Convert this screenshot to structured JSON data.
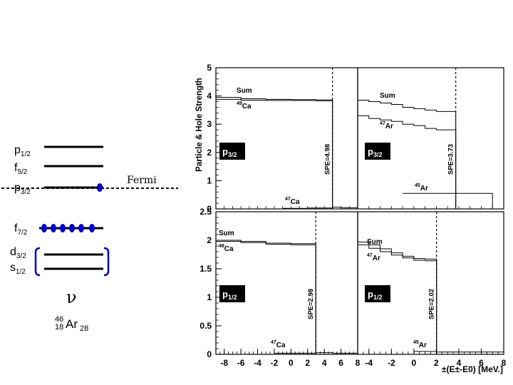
{
  "scheme": {
    "levels": [
      {
        "orbital": "p",
        "sub": "1/2"
      },
      {
        "orbital": "f",
        "sub": "5/2"
      },
      {
        "orbital": "p",
        "sub": "3/2"
      },
      {
        "orbital": "f",
        "sub": "7/2"
      },
      {
        "orbital": "d",
        "sub": "3/2"
      },
      {
        "orbital": "s",
        "sub": "1/2"
      }
    ],
    "fermi_label": "Fermi",
    "nu_label": "ν",
    "nucleus": {
      "mass": "46",
      "z": "18",
      "symbol": "Ar",
      "n": "28"
    },
    "colors": {
      "particle": "#0000cc",
      "line": "#000000"
    }
  },
  "chart_data": [
    {
      "panel": "top-left",
      "type": "line",
      "orbital_label": "p",
      "orbital_sub": "3/2",
      "xlim": [
        -9,
        8
      ],
      "ylim": [
        0,
        5
      ],
      "y_ticks": [
        "0",
        "1",
        "2",
        "3",
        "4",
        "5"
      ],
      "ylabel": "Particle & Hole Strength",
      "spe_label": "SPE=4.98",
      "spe_value": 4.98,
      "series": [
        {
          "name": "Sum",
          "label_text": "Sum",
          "x": [
            -9,
            -6,
            -3,
            0,
            3,
            4.98
          ],
          "y": [
            3.95,
            3.9,
            3.88,
            3.87,
            3.86,
            3.86
          ]
        },
        {
          "name": "49Ca",
          "label_sup": "49",
          "label_text": "Ca",
          "x": [
            -9,
            -6,
            -3,
            0,
            3,
            4.98
          ],
          "y": [
            3.88,
            3.85,
            3.84,
            3.84,
            3.83,
            3.83
          ]
        },
        {
          "name": "47Ca",
          "label_sup": "47",
          "label_text": "Ca",
          "x": [
            -1,
            2,
            4.98,
            6,
            8
          ],
          "y": [
            0.02,
            0.03,
            0.06,
            0.04,
            0.02
          ]
        }
      ]
    },
    {
      "panel": "top-right",
      "type": "line",
      "orbital_label": "p",
      "orbital_sub": "3/2",
      "xlim": [
        -5,
        8
      ],
      "ylim": [
        0,
        5
      ],
      "spe_label": "SPE=3.73",
      "spe_value": 3.73,
      "series": [
        {
          "name": "Sum",
          "label_text": "Sum",
          "x": [
            -5,
            -4,
            -3,
            -2,
            -1,
            0,
            1,
            2,
            3.73
          ],
          "y": [
            3.85,
            3.8,
            3.75,
            3.7,
            3.6,
            3.55,
            3.5,
            3.45,
            3.45
          ]
        },
        {
          "name": "47Ar",
          "label_sup": "47",
          "label_text": "Ar",
          "x": [
            -5,
            -4,
            -3,
            -2,
            -1,
            0,
            1,
            2,
            3.73
          ],
          "y": [
            3.3,
            3.2,
            3.15,
            3.1,
            3.0,
            2.95,
            2.85,
            2.8,
            2.8
          ]
        },
        {
          "name": "45Ar",
          "label_sup": "45",
          "label_text": "Ar",
          "x": [
            -1,
            3.73,
            5,
            7
          ],
          "y": [
            0.55,
            0.55,
            0.55,
            0.55
          ]
        }
      ]
    },
    {
      "panel": "bottom-left",
      "type": "line",
      "orbital_label": "p",
      "orbital_sub": "1/2",
      "xlim": [
        -9,
        8
      ],
      "ylim": [
        0,
        2.5
      ],
      "x_ticks": [
        "-8",
        "-6",
        "-4",
        "-2",
        "0",
        "2",
        "4",
        "6",
        "8"
      ],
      "y_ticks": [
        "0",
        "0.5",
        "1",
        "1.5",
        "2",
        "2.5"
      ],
      "spe_label": "SPE=2.98",
      "spe_value": 2.98,
      "series": [
        {
          "name": "Sum",
          "label_text": "Sum",
          "x": [
            -9,
            -6,
            -3,
            0,
            2.98
          ],
          "y": [
            2.0,
            1.98,
            1.95,
            1.94,
            1.94
          ]
        },
        {
          "name": "49Ca",
          "label_sup": "49",
          "label_text": "Ca",
          "x": [
            -9,
            -6,
            -3,
            0,
            2.98
          ],
          "y": [
            1.98,
            1.96,
            1.93,
            1.92,
            1.92
          ]
        },
        {
          "name": "47Ca",
          "label_sup": "47",
          "label_text": "Ca",
          "x": [
            -2,
            2.98,
            5,
            8
          ],
          "y": [
            0.02,
            0.03,
            0.02,
            0.02
          ]
        }
      ]
    },
    {
      "panel": "bottom-right",
      "type": "line",
      "orbital_label": "p",
      "orbital_sub": "1/2",
      "xlim": [
        -5,
        8
      ],
      "ylim": [
        0,
        2.5
      ],
      "x_ticks": [
        "-4",
        "-2",
        "0",
        "2",
        "4",
        "6",
        "8"
      ],
      "xlabel": "±(E±-E0) [MeV.]",
      "spe_label": "SPE=2.02",
      "spe_value": 2.02,
      "series": [
        {
          "name": "Sum",
          "label_text": "Sum",
          "x": [
            -5,
            -4,
            -3,
            -2,
            -1,
            0,
            1,
            2.02
          ],
          "y": [
            1.97,
            1.92,
            1.85,
            1.78,
            1.72,
            1.68,
            1.67,
            1.67
          ]
        },
        {
          "name": "47Ar",
          "label_sup": "47",
          "label_text": "Ar",
          "x": [
            -5,
            -4,
            -3,
            -2,
            -1,
            0,
            1,
            2.02
          ],
          "y": [
            1.92,
            1.86,
            1.8,
            1.74,
            1.69,
            1.65,
            1.64,
            1.64
          ]
        },
        {
          "name": "45Ar",
          "label_sup": "45",
          "label_text": "Ar",
          "x": [
            0,
            2.02,
            4,
            8
          ],
          "y": [
            0.05,
            0.04,
            0.04,
            0.03
          ]
        }
      ]
    }
  ]
}
